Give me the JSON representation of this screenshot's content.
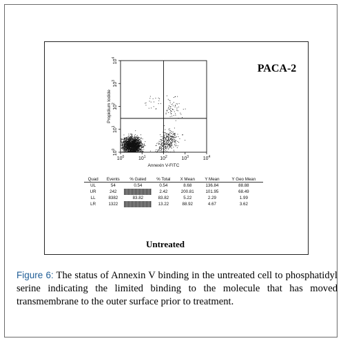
{
  "chart_data": {
    "type": "scatter",
    "sample_label": "PACA-2",
    "condition_label": "Untreated",
    "xlabel": "Annexin V-FITC",
    "ylabel": "Propidium Iodide",
    "x_scale": "log",
    "y_scale": "log",
    "xlim": [
      1,
      10000
    ],
    "ylim": [
      1,
      10000
    ],
    "x_ticks": [
      {
        "value": 1,
        "base": "10",
        "exp": "0"
      },
      {
        "value": 10,
        "base": "10",
        "exp": "1"
      },
      {
        "value": 100,
        "base": "10",
        "exp": "2"
      },
      {
        "value": 1000,
        "base": "10",
        "exp": "3"
      },
      {
        "value": 10000,
        "base": "10",
        "exp": "4"
      }
    ],
    "y_ticks": [
      {
        "value": 1,
        "base": "10",
        "exp": "0"
      },
      {
        "value": 10,
        "base": "10",
        "exp": "1"
      },
      {
        "value": 100,
        "base": "10",
        "exp": "2"
      },
      {
        "value": 1000,
        "base": "10",
        "exp": "3"
      },
      {
        "value": 10000,
        "base": "10",
        "exp": "4"
      }
    ],
    "quadrant_gate": {
      "x": 100,
      "y": 30
    },
    "populations": [
      {
        "quad": "LL",
        "events": 8382,
        "x_geomean": 3.5,
        "y_geomean": 2.0,
        "spread_decades": 0.35
      },
      {
        "quad": "LR",
        "events": 1322,
        "x_geomean": 150,
        "y_geomean": 3.0,
        "spread_decades": 0.45
      },
      {
        "quad": "UL",
        "events": 54,
        "x_geomean": 30,
        "y_geomean": 150,
        "spread_decades": 0.4
      },
      {
        "quad": "UR",
        "events": 242,
        "x_geomean": 250,
        "y_geomean": 90,
        "spread_decades": 0.4
      }
    ],
    "stats_table": {
      "columns": [
        "Quad",
        "Events",
        "% Gated",
        "% Total",
        "X Mean",
        "Y Mean",
        "Y Geo Mean"
      ],
      "rows": [
        [
          "UL",
          "54",
          "0.54",
          "0.54",
          "8.68",
          "136.84",
          "88.88"
        ],
        [
          "UR",
          "242",
          "",
          "2.42",
          "200.81",
          "101.95",
          "68.49"
        ],
        [
          "LL",
          "8382",
          "83.82",
          "83.82",
          "5.22",
          "2.29",
          "1.99"
        ],
        [
          "LR",
          "1322",
          "",
          "13.22",
          "88.92",
          "4.67",
          "3.62"
        ]
      ]
    }
  },
  "caption": {
    "label": "Figure 6:",
    "text": " The status of Annexin V binding in the untreated cell to phosphatidyl serine indicating the limited binding to the molecule that has moved transmembrane to the outer surface prior to treatment."
  }
}
